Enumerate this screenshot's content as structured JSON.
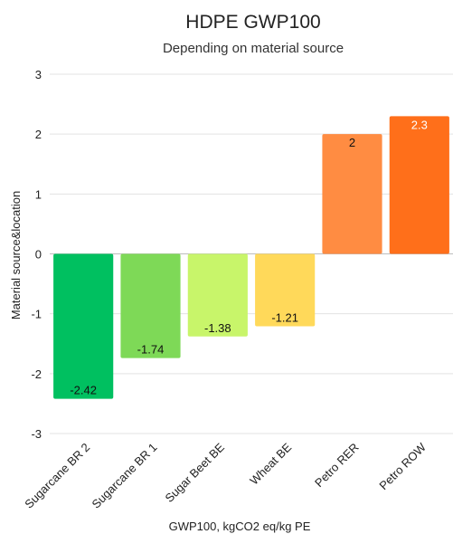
{
  "chart_data": {
    "type": "bar",
    "title": "HDPE GWP100",
    "subtitle": "Depending on material source",
    "xlabel": "GWP100, kgCO2 eq/kg PE",
    "ylabel": "Material source&location",
    "ylim": [
      -3,
      3
    ],
    "yticks": [
      3,
      2,
      1,
      0,
      -1,
      -2,
      -3
    ],
    "grid": true,
    "categories": [
      "Sugarcane BR 2",
      "Sugarcane BR 1",
      "Sugar Beet BE",
      "Wheat BE",
      "Petro RER",
      "Petro ROW"
    ],
    "values": [
      -2.42,
      -1.74,
      -1.38,
      -1.21,
      2,
      2.3
    ],
    "data_labels": [
      "-2.42",
      "-1.74",
      "-1.38",
      "-1.21",
      "2",
      "2.3"
    ],
    "colors": [
      "#00c060",
      "#7ed957",
      "#c8f56a",
      "#ffd95a",
      "#ff8c42",
      "#ff6f1a"
    ],
    "label_colors": [
      "#111111",
      "#111111",
      "#111111",
      "#111111",
      "#111111",
      "#ffffff"
    ]
  }
}
